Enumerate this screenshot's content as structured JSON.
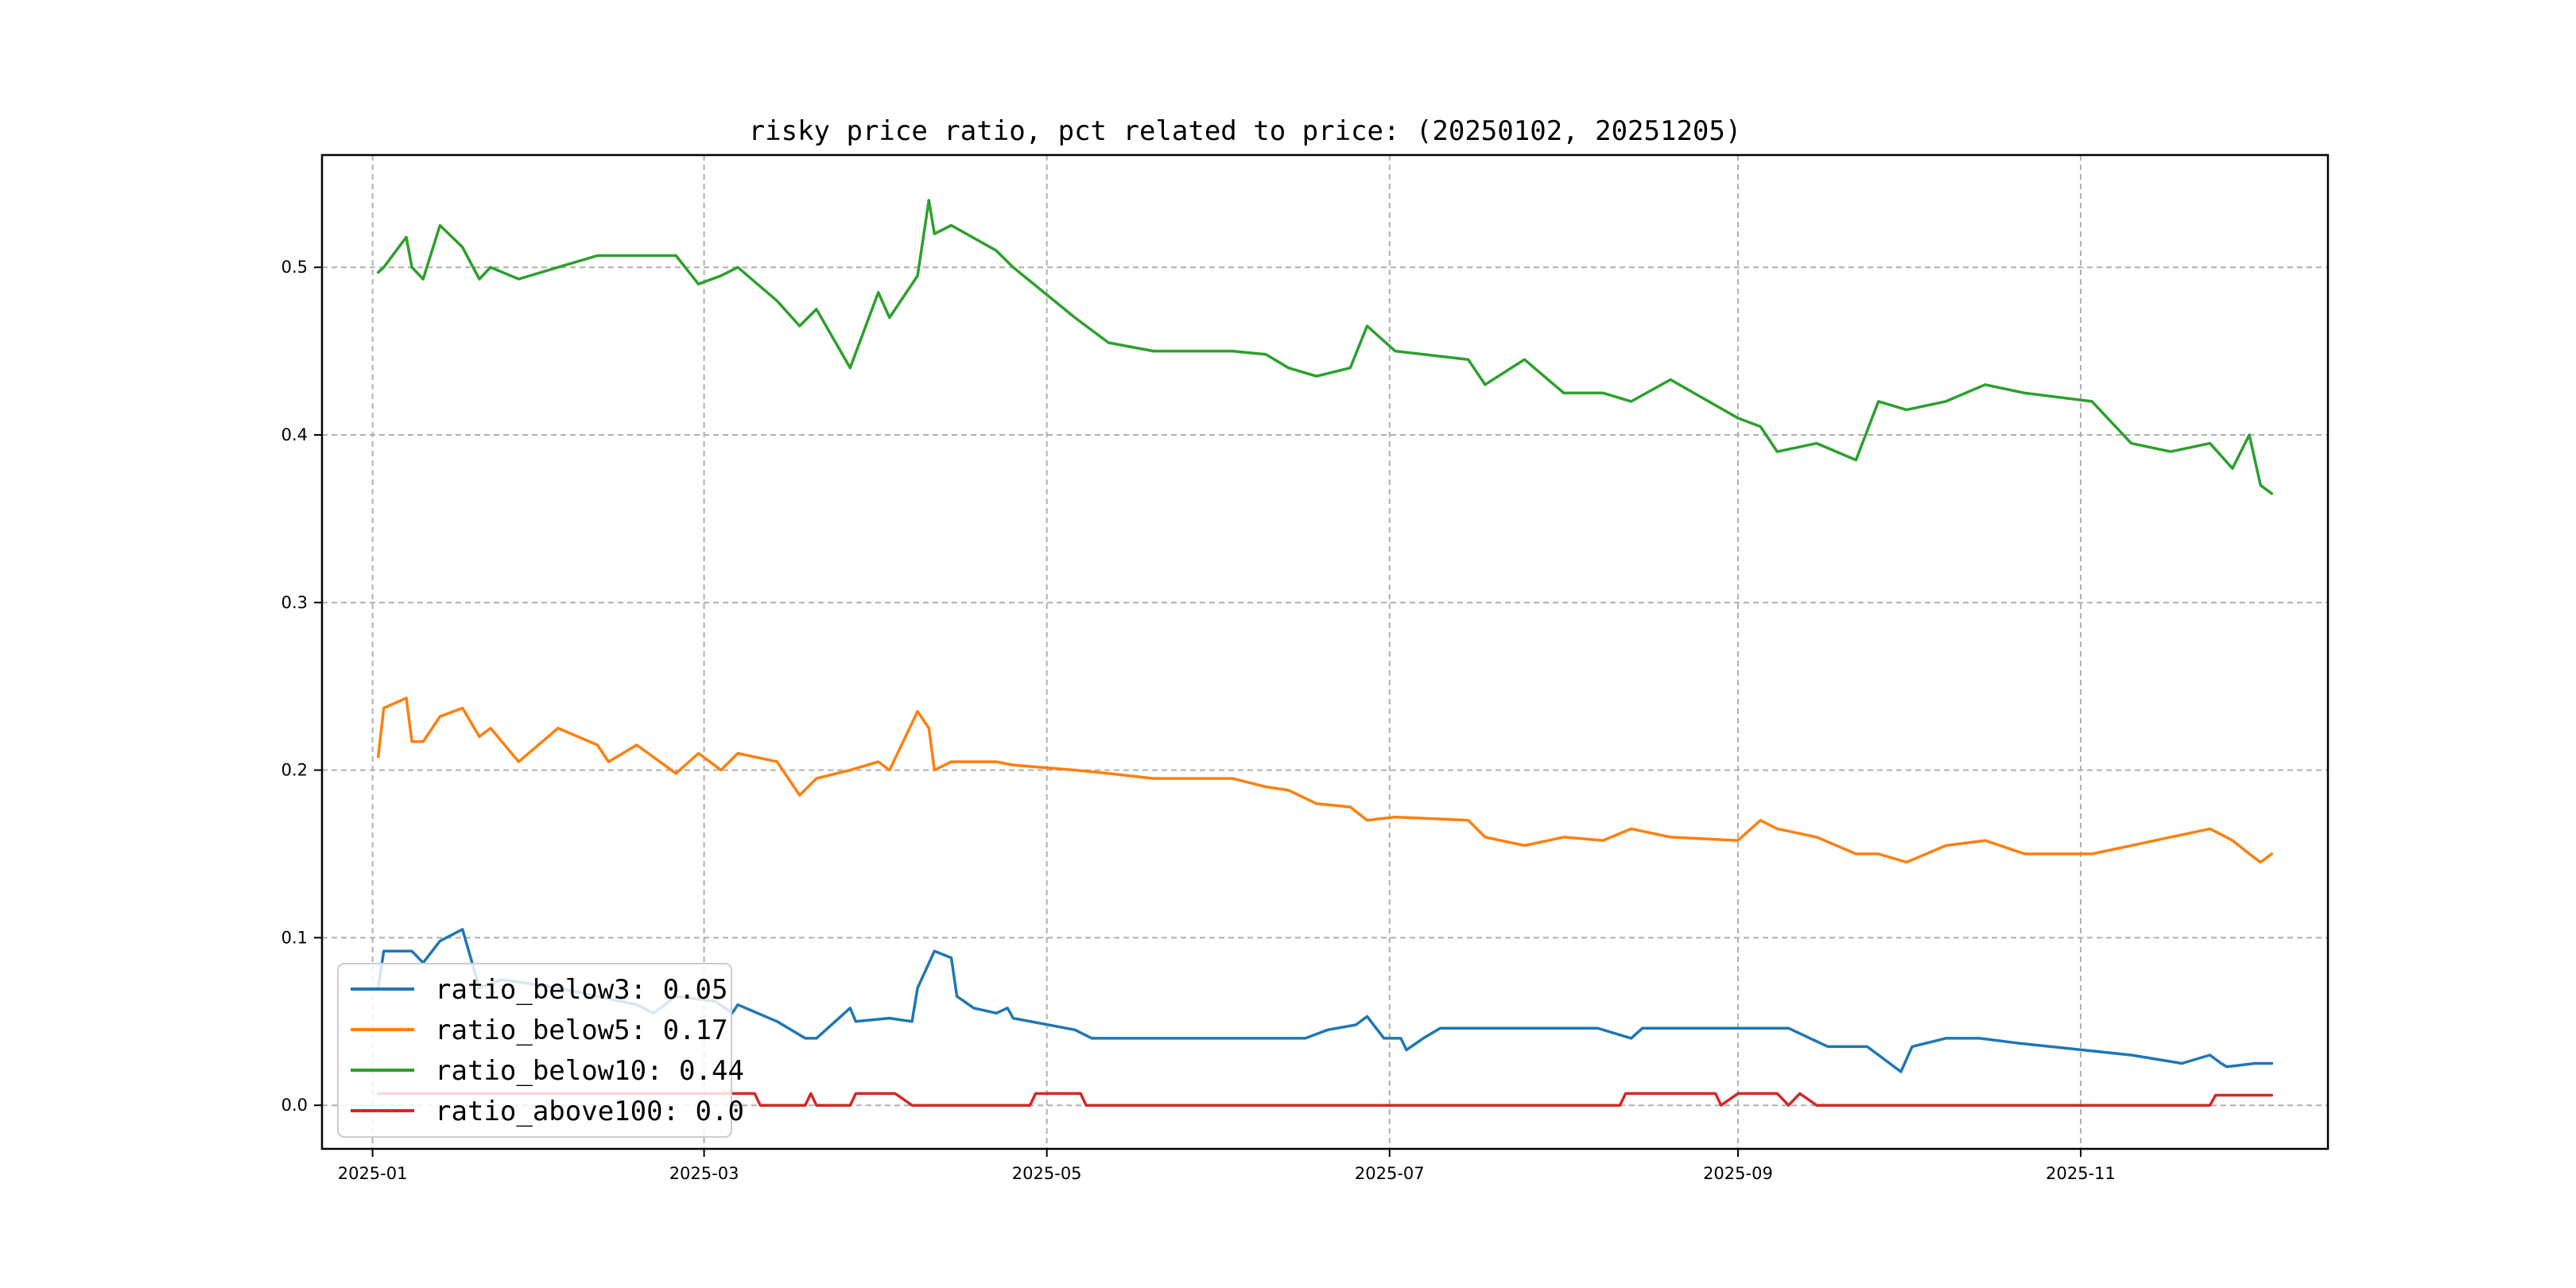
{
  "chart_data": {
    "type": "line",
    "title": "risky price ratio, pct related to price: (20250102, 20251205)",
    "xlabel": "",
    "ylabel": "",
    "xlim": [
      "2024-12-23",
      "2025-12-15"
    ],
    "ylim": [
      -0.026,
      0.567
    ],
    "x_ticks": [
      "2025-01",
      "2025-03",
      "2025-05",
      "2025-07",
      "2025-09",
      "2025-11"
    ],
    "y_ticks": [
      "0.0",
      "0.1",
      "0.2",
      "0.3",
      "0.4",
      "0.5"
    ],
    "grid": true,
    "legend_position": "lower-left",
    "series": [
      {
        "name": "ratio_below3: 0.05",
        "color": "#1f77b4",
        "points": [
          [
            "2025-01-02",
            0.07
          ],
          [
            "2025-01-03",
            0.092
          ],
          [
            "2025-01-06",
            0.092
          ],
          [
            "2025-01-08",
            0.092
          ],
          [
            "2025-01-10",
            0.085
          ],
          [
            "2025-01-13",
            0.098
          ],
          [
            "2025-01-17",
            0.105
          ],
          [
            "2025-01-20",
            0.07
          ],
          [
            "2025-01-24",
            0.075
          ],
          [
            "2025-02-03",
            0.07
          ],
          [
            "2025-02-10",
            0.065
          ],
          [
            "2025-02-17",
            0.06
          ],
          [
            "2025-02-20",
            0.055
          ],
          [
            "2025-02-24",
            0.065
          ],
          [
            "2025-03-03",
            0.062
          ],
          [
            "2025-03-06",
            0.055
          ],
          [
            "2025-03-07",
            0.06
          ],
          [
            "2025-03-14",
            0.05
          ],
          [
            "2025-03-19",
            0.04
          ],
          [
            "2025-03-21",
            0.04
          ],
          [
            "2025-03-27",
            0.058
          ],
          [
            "2025-03-28",
            0.05
          ],
          [
            "2025-04-03",
            0.052
          ],
          [
            "2025-04-07",
            0.05
          ],
          [
            "2025-04-08",
            0.07
          ],
          [
            "2025-04-11",
            0.092
          ],
          [
            "2025-04-14",
            0.088
          ],
          [
            "2025-04-15",
            0.065
          ],
          [
            "2025-04-18",
            0.058
          ],
          [
            "2025-04-22",
            0.055
          ],
          [
            "2025-04-24",
            0.058
          ],
          [
            "2025-04-25",
            0.052
          ],
          [
            "2025-05-06",
            0.045
          ],
          [
            "2025-05-09",
            0.04
          ],
          [
            "2025-05-15",
            0.04
          ],
          [
            "2025-06-16",
            0.04
          ],
          [
            "2025-06-20",
            0.045
          ],
          [
            "2025-06-25",
            0.048
          ],
          [
            "2025-06-27",
            0.053
          ],
          [
            "2025-06-30",
            0.04
          ],
          [
            "2025-07-03",
            0.04
          ],
          [
            "2025-07-04",
            0.033
          ],
          [
            "2025-07-07",
            0.04
          ],
          [
            "2025-07-10",
            0.046
          ],
          [
            "2025-07-21",
            0.046
          ],
          [
            "2025-08-07",
            0.046
          ],
          [
            "2025-08-11",
            0.042
          ],
          [
            "2025-08-13",
            0.04
          ],
          [
            "2025-08-15",
            0.046
          ],
          [
            "2025-08-20",
            0.046
          ],
          [
            "2025-09-05",
            0.046
          ],
          [
            "2025-09-10",
            0.046
          ],
          [
            "2025-09-17",
            0.035
          ],
          [
            "2025-09-24",
            0.035
          ],
          [
            "2025-09-30",
            0.02
          ],
          [
            "2025-10-02",
            0.035
          ],
          [
            "2025-10-08",
            0.04
          ],
          [
            "2025-10-14",
            0.04
          ],
          [
            "2025-10-21",
            0.037
          ],
          [
            "2025-11-10",
            0.03
          ],
          [
            "2025-11-19",
            0.025
          ],
          [
            "2025-11-24",
            0.03
          ],
          [
            "2025-11-26",
            0.025
          ],
          [
            "2025-11-27",
            0.023
          ],
          [
            "2025-12-02",
            0.025
          ],
          [
            "2025-12-05",
            0.025
          ]
        ]
      },
      {
        "name": "ratio_below5: 0.17",
        "color": "#ff7f0e",
        "points": [
          [
            "2025-01-02",
            0.208
          ],
          [
            "2025-01-03",
            0.237
          ],
          [
            "2025-01-07",
            0.243
          ],
          [
            "2025-01-08",
            0.217
          ],
          [
            "2025-01-10",
            0.217
          ],
          [
            "2025-01-13",
            0.232
          ],
          [
            "2025-01-17",
            0.237
          ],
          [
            "2025-01-20",
            0.22
          ],
          [
            "2025-01-22",
            0.225
          ],
          [
            "2025-01-27",
            0.205
          ],
          [
            "2025-02-03",
            0.225
          ],
          [
            "2025-02-10",
            0.215
          ],
          [
            "2025-02-12",
            0.205
          ],
          [
            "2025-02-17",
            0.215
          ],
          [
            "2025-02-24",
            0.198
          ],
          [
            "2025-02-28",
            0.21
          ],
          [
            "2025-03-04",
            0.2
          ],
          [
            "2025-03-07",
            0.21
          ],
          [
            "2025-03-14",
            0.205
          ],
          [
            "2025-03-18",
            0.185
          ],
          [
            "2025-03-21",
            0.195
          ],
          [
            "2025-03-27",
            0.2
          ],
          [
            "2025-04-01",
            0.205
          ],
          [
            "2025-04-03",
            0.2
          ],
          [
            "2025-04-08",
            0.235
          ],
          [
            "2025-04-10",
            0.225
          ],
          [
            "2025-04-11",
            0.2
          ],
          [
            "2025-04-14",
            0.205
          ],
          [
            "2025-04-22",
            0.205
          ],
          [
            "2025-04-25",
            0.203
          ],
          [
            "2025-05-06",
            0.2
          ],
          [
            "2025-05-12",
            0.198
          ],
          [
            "2025-05-20",
            0.195
          ],
          [
            "2025-06-03",
            0.195
          ],
          [
            "2025-06-09",
            0.19
          ],
          [
            "2025-06-13",
            0.188
          ],
          [
            "2025-06-18",
            0.18
          ],
          [
            "2025-06-24",
            0.178
          ],
          [
            "2025-06-27",
            0.17
          ],
          [
            "2025-07-02",
            0.172
          ],
          [
            "2025-07-15",
            0.17
          ],
          [
            "2025-07-18",
            0.16
          ],
          [
            "2025-07-25",
            0.155
          ],
          [
            "2025-08-01",
            0.16
          ],
          [
            "2025-08-08",
            0.158
          ],
          [
            "2025-08-13",
            0.165
          ],
          [
            "2025-08-20",
            0.16
          ],
          [
            "2025-09-01",
            0.158
          ],
          [
            "2025-09-05",
            0.17
          ],
          [
            "2025-09-08",
            0.165
          ],
          [
            "2025-09-15",
            0.16
          ],
          [
            "2025-09-22",
            0.15
          ],
          [
            "2025-09-26",
            0.15
          ],
          [
            "2025-10-01",
            0.145
          ],
          [
            "2025-10-08",
            0.155
          ],
          [
            "2025-10-15",
            0.158
          ],
          [
            "2025-10-22",
            0.15
          ],
          [
            "2025-11-03",
            0.15
          ],
          [
            "2025-11-10",
            0.155
          ],
          [
            "2025-11-17",
            0.16
          ],
          [
            "2025-11-24",
            0.165
          ],
          [
            "2025-11-28",
            0.158
          ],
          [
            "2025-12-01",
            0.15
          ],
          [
            "2025-12-03",
            0.145
          ],
          [
            "2025-12-05",
            0.15
          ]
        ]
      },
      {
        "name": "ratio_below10: 0.44",
        "color": "#2ca02c",
        "points": [
          [
            "2025-01-02",
            0.497
          ],
          [
            "2025-01-03",
            0.5
          ],
          [
            "2025-01-07",
            0.518
          ],
          [
            "2025-01-08",
            0.5
          ],
          [
            "2025-01-10",
            0.493
          ],
          [
            "2025-01-13",
            0.525
          ],
          [
            "2025-01-17",
            0.512
          ],
          [
            "2025-01-20",
            0.493
          ],
          [
            "2025-01-22",
            0.5
          ],
          [
            "2025-01-27",
            0.493
          ],
          [
            "2025-02-03",
            0.5
          ],
          [
            "2025-02-10",
            0.507
          ],
          [
            "2025-02-17",
            0.507
          ],
          [
            "2025-02-24",
            0.507
          ],
          [
            "2025-02-28",
            0.49
          ],
          [
            "2025-03-04",
            0.495
          ],
          [
            "2025-03-07",
            0.5
          ],
          [
            "2025-03-14",
            0.48
          ],
          [
            "2025-03-18",
            0.465
          ],
          [
            "2025-03-21",
            0.475
          ],
          [
            "2025-03-27",
            0.44
          ],
          [
            "2025-04-01",
            0.485
          ],
          [
            "2025-04-03",
            0.47
          ],
          [
            "2025-04-08",
            0.495
          ],
          [
            "2025-04-10",
            0.54
          ],
          [
            "2025-04-11",
            0.52
          ],
          [
            "2025-04-14",
            0.525
          ],
          [
            "2025-04-22",
            0.51
          ],
          [
            "2025-04-25",
            0.5
          ],
          [
            "2025-05-06",
            0.47
          ],
          [
            "2025-05-12",
            0.455
          ],
          [
            "2025-05-20",
            0.45
          ],
          [
            "2025-06-03",
            0.45
          ],
          [
            "2025-06-09",
            0.448
          ],
          [
            "2025-06-13",
            0.44
          ],
          [
            "2025-06-18",
            0.435
          ],
          [
            "2025-06-24",
            0.44
          ],
          [
            "2025-06-27",
            0.465
          ],
          [
            "2025-07-02",
            0.45
          ],
          [
            "2025-07-15",
            0.445
          ],
          [
            "2025-07-18",
            0.43
          ],
          [
            "2025-07-25",
            0.445
          ],
          [
            "2025-08-01",
            0.425
          ],
          [
            "2025-08-08",
            0.425
          ],
          [
            "2025-08-13",
            0.42
          ],
          [
            "2025-08-20",
            0.433
          ],
          [
            "2025-09-01",
            0.41
          ],
          [
            "2025-09-05",
            0.405
          ],
          [
            "2025-09-08",
            0.39
          ],
          [
            "2025-09-15",
            0.395
          ],
          [
            "2025-09-22",
            0.385
          ],
          [
            "2025-09-26",
            0.42
          ],
          [
            "2025-10-01",
            0.415
          ],
          [
            "2025-10-08",
            0.42
          ],
          [
            "2025-10-15",
            0.43
          ],
          [
            "2025-10-22",
            0.425
          ],
          [
            "2025-11-03",
            0.42
          ],
          [
            "2025-11-10",
            0.395
          ],
          [
            "2025-11-17",
            0.39
          ],
          [
            "2025-11-24",
            0.395
          ],
          [
            "2025-11-28",
            0.38
          ],
          [
            "2025-12-01",
            0.4
          ],
          [
            "2025-12-03",
            0.37
          ],
          [
            "2025-12-05",
            0.365
          ]
        ]
      },
      {
        "name": "ratio_above100: 0.0",
        "color": "#d62728",
        "points": [
          [
            "2025-01-02",
            0.007
          ],
          [
            "2025-03-10",
            0.007
          ],
          [
            "2025-03-11",
            0.0
          ],
          [
            "2025-03-19",
            0.0
          ],
          [
            "2025-03-20",
            0.007
          ],
          [
            "2025-03-21",
            0.0
          ],
          [
            "2025-03-27",
            0.0
          ],
          [
            "2025-03-28",
            0.007
          ],
          [
            "2025-04-04",
            0.007
          ],
          [
            "2025-04-07",
            0.0
          ],
          [
            "2025-04-28",
            0.0
          ],
          [
            "2025-04-29",
            0.007
          ],
          [
            "2025-05-07",
            0.007
          ],
          [
            "2025-05-08",
            0.0
          ],
          [
            "2025-08-11",
            0.0
          ],
          [
            "2025-08-12",
            0.007
          ],
          [
            "2025-08-28",
            0.007
          ],
          [
            "2025-08-29",
            0.0
          ],
          [
            "2025-09-01",
            0.007
          ],
          [
            "2025-09-08",
            0.007
          ],
          [
            "2025-09-10",
            0.0
          ],
          [
            "2025-09-12",
            0.007
          ],
          [
            "2025-09-15",
            0.0
          ],
          [
            "2025-11-24",
            0.0
          ],
          [
            "2025-11-25",
            0.006
          ],
          [
            "2025-12-05",
            0.006
          ]
        ]
      }
    ]
  }
}
